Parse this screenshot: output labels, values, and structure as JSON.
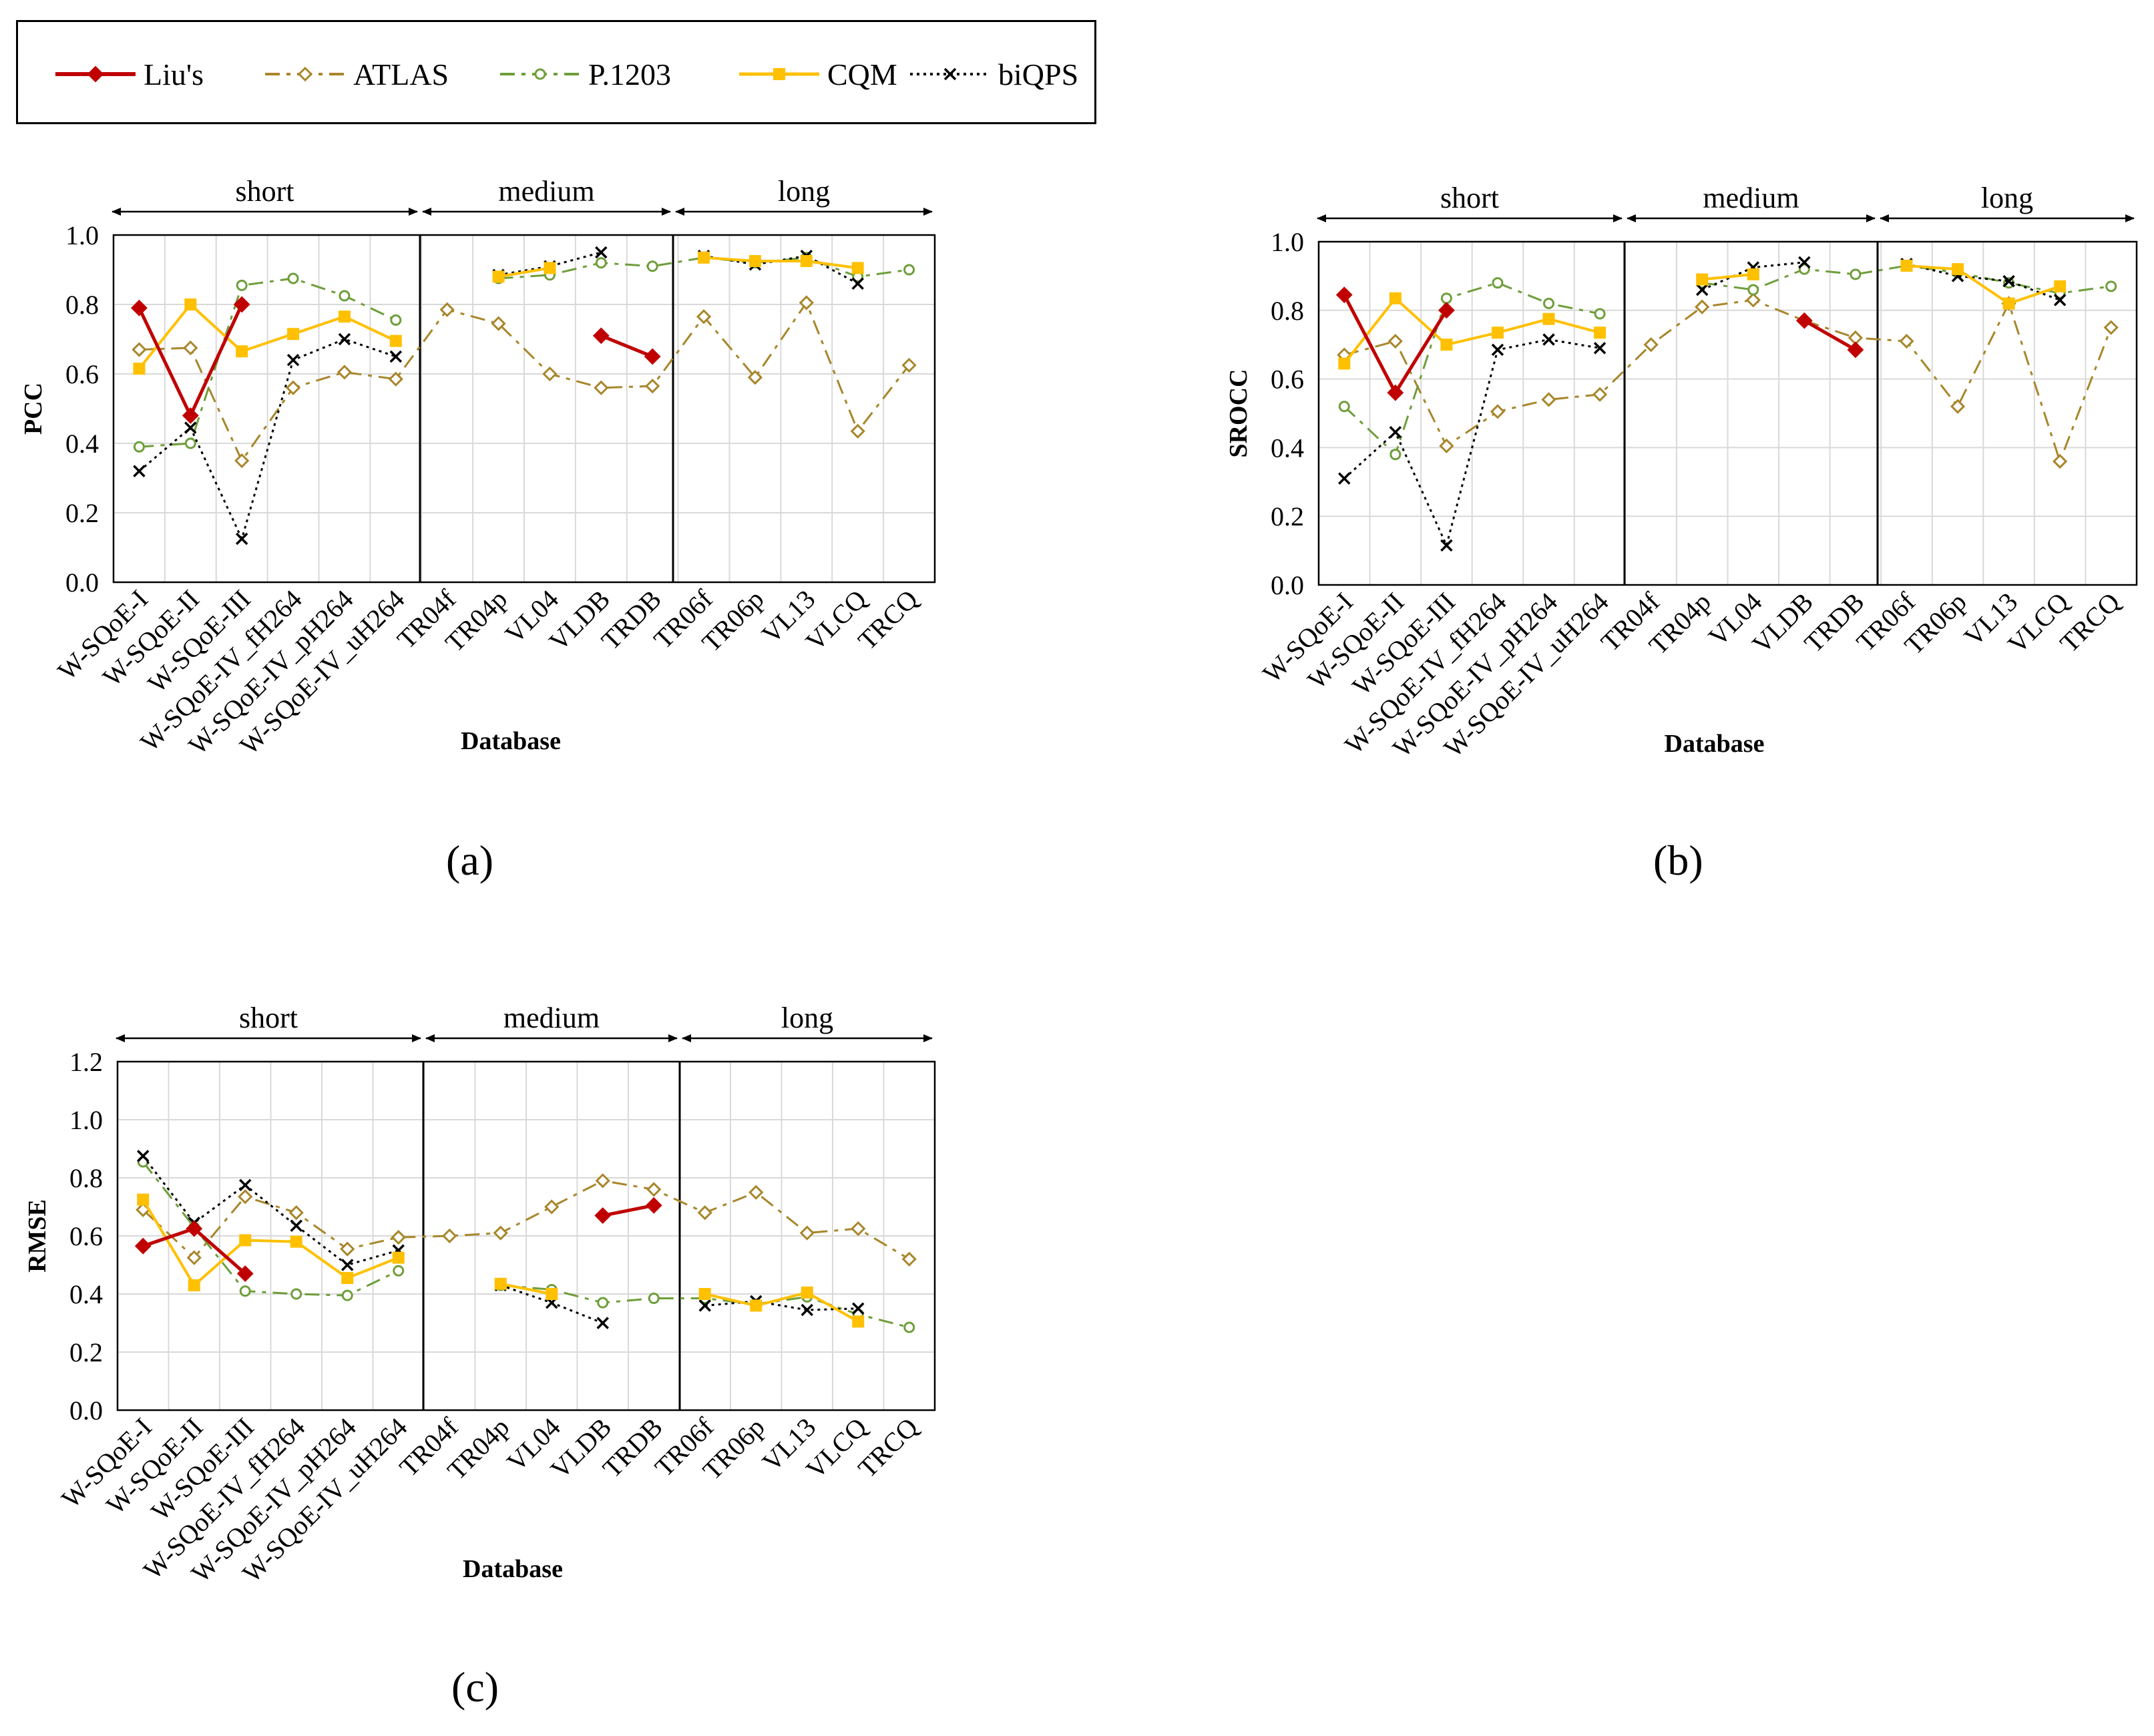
{
  "legend": [
    {
      "name": "Liu's",
      "color": "#C00000",
      "dash": "",
      "marker": "diamond-filled",
      "width": 5
    },
    {
      "name": "ATLAS",
      "color": "#A8862A",
      "dash": "22,10,6,10",
      "marker": "diamond-open",
      "width": 3
    },
    {
      "name": "P.1203",
      "color": "#6E9E3A",
      "dash": "22,10,6,10",
      "marker": "circle-open",
      "width": 3
    },
    {
      "name": "CQM",
      "color": "#FFC000",
      "dash": "",
      "marker": "square-filled",
      "width": 4
    },
    {
      "name": "biQPS",
      "color": "#000000",
      "dash": "4,6",
      "marker": "x",
      "width": 3
    }
  ],
  "categories": [
    "W-SQoE-I",
    "W-SQoE-II",
    "W-SQoE-III",
    "W-SQoE-IV_fH264",
    "W-SQoE-IV_pH264",
    "W-SQoE-IV_uH264",
    "TR04f",
    "TR04p",
    "VL04",
    "VLDB",
    "TRDB",
    "TR06f",
    "TR06p",
    "VL13",
    "VLCQ",
    "TRCQ"
  ],
  "groups": [
    {
      "label": "short",
      "start": 0,
      "end": 6
    },
    {
      "label": "medium",
      "start": 6,
      "end": 11
    },
    {
      "label": "long",
      "start": 11,
      "end": 16
    }
  ],
  "xlabel": "Database",
  "chart_data": [
    {
      "type": "line",
      "panel": "(a)",
      "ylabel": "PCC",
      "ylim": [
        0,
        1.0
      ],
      "yticks": [
        "0.0",
        "0.2",
        "0.4",
        "0.6",
        "0.8",
        "1.0"
      ],
      "series": [
        {
          "name": "Liu's",
          "values": [
            0.79,
            0.48,
            0.8,
            null,
            null,
            null,
            null,
            null,
            null,
            0.71,
            0.65,
            null,
            null,
            null,
            null,
            null
          ]
        },
        {
          "name": "ATLAS",
          "values": [
            0.67,
            0.675,
            0.35,
            0.56,
            0.605,
            0.585,
            0.785,
            0.745,
            0.6,
            0.56,
            0.565,
            0.765,
            0.59,
            0.805,
            0.435,
            0.625
          ]
        },
        {
          "name": "P.1203",
          "values": [
            0.39,
            0.4,
            0.855,
            0.875,
            0.825,
            0.755,
            null,
            0.875,
            0.885,
            0.92,
            0.91,
            0.935,
            0.92,
            0.935,
            0.88,
            0.9
          ]
        },
        {
          "name": "CQM",
          "values": [
            0.615,
            0.8,
            0.665,
            0.715,
            0.765,
            0.695,
            null,
            0.88,
            0.905,
            null,
            null,
            0.935,
            0.925,
            0.925,
            0.905,
            null
          ]
        },
        {
          "name": "biQPS",
          "values": [
            0.32,
            0.445,
            0.125,
            0.64,
            0.7,
            0.65,
            null,
            0.885,
            0.91,
            0.95,
            null,
            0.94,
            0.915,
            0.94,
            0.86,
            null
          ]
        }
      ]
    },
    {
      "type": "line",
      "panel": "(b)",
      "ylabel": "SROCC",
      "ylim": [
        0,
        1.0
      ],
      "yticks": [
        "0.0",
        "0.2",
        "0.4",
        "0.6",
        "0.8",
        "1.0"
      ],
      "series": [
        {
          "name": "Liu's",
          "values": [
            0.845,
            0.56,
            0.8,
            null,
            null,
            null,
            null,
            null,
            null,
            0.77,
            0.685,
            null,
            null,
            null,
            null,
            null
          ]
        },
        {
          "name": "ATLAS",
          "values": [
            0.67,
            0.71,
            0.405,
            0.505,
            0.54,
            0.555,
            0.7,
            0.81,
            0.83,
            0.77,
            0.72,
            0.71,
            0.52,
            0.82,
            0.36,
            0.75
          ]
        },
        {
          "name": "P.1203",
          "values": [
            0.52,
            0.38,
            0.835,
            0.88,
            0.82,
            0.79,
            null,
            0.88,
            0.86,
            0.92,
            0.905,
            0.93,
            0.91,
            0.88,
            0.85,
            0.87
          ]
        },
        {
          "name": "CQM",
          "values": [
            0.645,
            0.835,
            0.7,
            0.735,
            0.775,
            0.735,
            null,
            0.89,
            0.905,
            null,
            null,
            0.93,
            0.92,
            0.82,
            0.87,
            null
          ]
        },
        {
          "name": "biQPS",
          "values": [
            0.31,
            0.445,
            0.115,
            0.685,
            0.715,
            0.69,
            null,
            0.86,
            0.925,
            0.94,
            null,
            0.935,
            0.9,
            0.885,
            0.83,
            null
          ]
        }
      ]
    },
    {
      "type": "line",
      "panel": "(c)",
      "ylabel": "RMSE",
      "ylim": [
        0,
        1.2
      ],
      "yticks": [
        "0.0",
        "0.2",
        "0.4",
        "0.6",
        "0.8",
        "1.0",
        "1.2"
      ],
      "series": [
        {
          "name": "Liu's",
          "values": [
            0.565,
            0.625,
            0.47,
            null,
            null,
            null,
            null,
            null,
            null,
            0.67,
            0.705,
            null,
            null,
            null,
            null,
            null
          ]
        },
        {
          "name": "ATLAS",
          "values": [
            0.69,
            0.525,
            0.735,
            0.68,
            0.555,
            0.595,
            0.6,
            0.61,
            0.7,
            0.79,
            0.76,
            0.68,
            0.75,
            0.61,
            0.625,
            0.52
          ]
        },
        {
          "name": "P.1203",
          "values": [
            0.855,
            0.63,
            0.41,
            0.4,
            0.395,
            0.48,
            null,
            0.43,
            0.415,
            0.37,
            0.385,
            0.385,
            0.365,
            0.39,
            0.33,
            0.285
          ]
        },
        {
          "name": "CQM",
          "values": [
            0.725,
            0.43,
            0.585,
            0.58,
            0.455,
            0.525,
            null,
            0.435,
            0.4,
            null,
            null,
            0.4,
            0.36,
            0.405,
            0.305,
            null
          ]
        },
        {
          "name": "biQPS",
          "values": [
            0.875,
            0.645,
            0.775,
            0.635,
            0.5,
            0.55,
            null,
            0.43,
            0.37,
            0.3,
            null,
            0.36,
            0.375,
            0.345,
            0.35,
            null
          ]
        }
      ]
    }
  ]
}
